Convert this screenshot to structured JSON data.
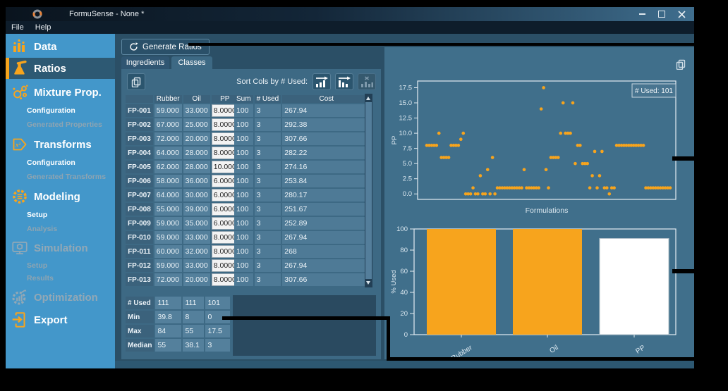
{
  "window": {
    "title": "FormuSense - None *",
    "menu": [
      "File",
      "Help"
    ],
    "controls": [
      "minimize",
      "maximize",
      "close"
    ]
  },
  "sidebar": {
    "items": [
      {
        "label": "Data",
        "kind": "main",
        "icon": "bar-chart-icon",
        "state": "normal"
      },
      {
        "label": "Ratios",
        "kind": "main",
        "icon": "flask-icon",
        "state": "active"
      },
      {
        "label": "Mixture Prop.",
        "kind": "main",
        "icon": "molecule-icon",
        "state": "normal"
      },
      {
        "label": "Configuration",
        "kind": "sub",
        "state": "normal"
      },
      {
        "label": "Generated Properties",
        "kind": "sub",
        "state": "disabled"
      },
      {
        "label": "Transforms",
        "kind": "main",
        "icon": "x-squared-icon",
        "state": "normal"
      },
      {
        "label": "Configuration",
        "kind": "sub",
        "state": "normal"
      },
      {
        "label": "Generated Transforms",
        "kind": "sub",
        "state": "disabled"
      },
      {
        "label": "Modeling",
        "kind": "main",
        "icon": "gear-icon",
        "state": "normal"
      },
      {
        "label": "Setup",
        "kind": "sub",
        "state": "normal"
      },
      {
        "label": "Analysis",
        "kind": "sub",
        "state": "disabled"
      },
      {
        "label": "Simulation",
        "kind": "main",
        "icon": "monitor-icon",
        "state": "disabled"
      },
      {
        "label": "Setup",
        "kind": "sub",
        "state": "disabled"
      },
      {
        "label": "Results",
        "kind": "sub",
        "state": "disabled"
      },
      {
        "label": "Optimization",
        "kind": "main",
        "icon": "gear-chart-icon",
        "state": "disabled"
      },
      {
        "label": "Export",
        "kind": "main",
        "icon": "export-icon",
        "state": "normal"
      }
    ]
  },
  "toolbar": {
    "generate_label": "Generate Ratios",
    "tabs": [
      {
        "label": "Ingredients",
        "selected": false
      },
      {
        "label": "Classes",
        "selected": true
      }
    ],
    "sort_label": "Sort Cols by # Used:"
  },
  "table": {
    "columns": [
      "Rubber",
      "Oil",
      "PP"
    ],
    "highlight_column": "PP",
    "extra_columns": [
      "Sum",
      "# Used",
      "Cost"
    ],
    "rows": [
      {
        "id": "FP-001",
        "values": [
          "59.000",
          "33.000",
          "8.0000"
        ],
        "sum": "100",
        "used": "3",
        "cost": "267.94"
      },
      {
        "id": "FP-002",
        "values": [
          "67.000",
          "25.000",
          "8.0000"
        ],
        "sum": "100",
        "used": "3",
        "cost": "292.38"
      },
      {
        "id": "FP-003",
        "values": [
          "72.000",
          "20.000",
          "8.0000"
        ],
        "sum": "100",
        "used": "3",
        "cost": "307.66"
      },
      {
        "id": "FP-004",
        "values": [
          "64.000",
          "28.000",
          "8.0000"
        ],
        "sum": "100",
        "used": "3",
        "cost": "282.22"
      },
      {
        "id": "FP-005",
        "values": [
          "62.000",
          "28.000",
          "10.000"
        ],
        "sum": "100",
        "used": "3",
        "cost": "274.16"
      },
      {
        "id": "FP-006",
        "values": [
          "58.000",
          "36.000",
          "6.0000"
        ],
        "sum": "100",
        "used": "3",
        "cost": "253.84"
      },
      {
        "id": "FP-007",
        "values": [
          "64.000",
          "30.000",
          "6.0000"
        ],
        "sum": "100",
        "used": "3",
        "cost": "280.17"
      },
      {
        "id": "FP-008",
        "values": [
          "55.000",
          "39.000",
          "6.0000"
        ],
        "sum": "100",
        "used": "3",
        "cost": "251.67"
      },
      {
        "id": "FP-009",
        "values": [
          "59.000",
          "35.000",
          "6.0000"
        ],
        "sum": "100",
        "used": "3",
        "cost": "252.89"
      },
      {
        "id": "FP-010",
        "values": [
          "59.000",
          "33.000",
          "8.0000"
        ],
        "sum": "100",
        "used": "3",
        "cost": "267.94"
      },
      {
        "id": "FP-011",
        "values": [
          "60.000",
          "32.000",
          "8.0000"
        ],
        "sum": "100",
        "used": "3",
        "cost": "268"
      },
      {
        "id": "FP-012",
        "values": [
          "59.000",
          "33.000",
          "8.0000"
        ],
        "sum": "100",
        "used": "3",
        "cost": "267.94"
      },
      {
        "id": "FP-013",
        "values": [
          "72.000",
          "20.000",
          "8.0000"
        ],
        "sum": "100",
        "used": "3",
        "cost": "307.66"
      }
    ],
    "summary": [
      {
        "label": "# Used",
        "values": [
          "111",
          "111",
          "101"
        ]
      },
      {
        "label": "Min",
        "values": [
          "39.8",
          "8",
          "0"
        ]
      },
      {
        "label": "Max",
        "values": [
          "84",
          "55",
          "17.5"
        ]
      },
      {
        "label": "Median",
        "values": [
          "55",
          "38.1",
          "3"
        ]
      }
    ]
  },
  "chart_data": [
    {
      "type": "scatter",
      "title": "",
      "xlabel": "Formulations",
      "ylabel": "PP",
      "legend": "# Used: 101",
      "legend_position": "upper right",
      "point_color": "#F7A41D",
      "yticks": [
        0.0,
        2.5,
        5.0,
        7.5,
        10.0,
        12.5,
        15.0,
        17.5
      ],
      "ylim": [
        -0.9,
        18.6
      ],
      "grid": false,
      "values": [
        8,
        8,
        8,
        8,
        8,
        10,
        6,
        6,
        6,
        6,
        8,
        8,
        8,
        8,
        9,
        10,
        0,
        0,
        0,
        1,
        0,
        0,
        3,
        0,
        0,
        4,
        0,
        6,
        0,
        1,
        1,
        1,
        1,
        1,
        1,
        1,
        1,
        1,
        1,
        1,
        4,
        1,
        1,
        1,
        1,
        1,
        1,
        14,
        17.5,
        4,
        1,
        6,
        6,
        6,
        6,
        10,
        15,
        10,
        10,
        10,
        15,
        5,
        8,
        8,
        5,
        5,
        5,
        1,
        3,
        7,
        1,
        3,
        7,
        1,
        1,
        0,
        1,
        1,
        8,
        8,
        8,
        8,
        8,
        8,
        8,
        8,
        8,
        8,
        8,
        8,
        1,
        1,
        1,
        1,
        1,
        1,
        1,
        1,
        1,
        1,
        1
      ]
    },
    {
      "type": "bar",
      "categories": [
        "Rubber",
        "Oil",
        "PP"
      ],
      "values": [
        100,
        100,
        91
      ],
      "colors": [
        "#F7A41D",
        "#F7A41D",
        "#FFFFFF"
      ],
      "title": "",
      "xlabel": "",
      "ylabel": "% Used",
      "yticks": [
        0,
        20,
        40,
        60,
        80,
        100
      ],
      "ylim": [
        0,
        100
      ],
      "grid": false
    }
  ],
  "colors": {
    "accent_orange": "#F7A41D",
    "sidebar_blue": "#4397CA",
    "panel_teal": "#3D6984",
    "annotation": "#000000"
  }
}
